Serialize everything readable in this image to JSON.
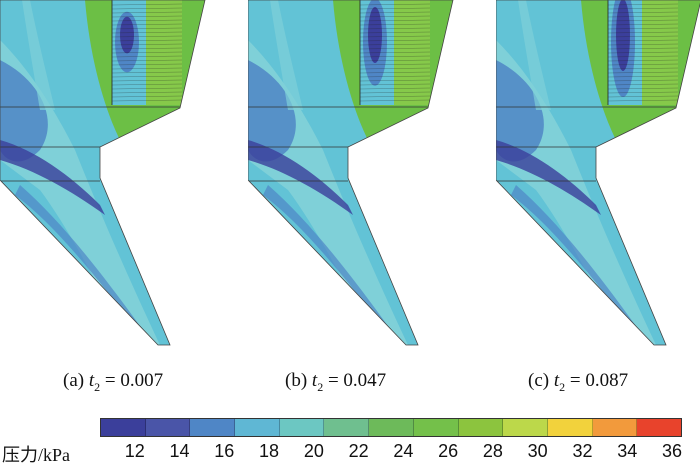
{
  "panels": [
    {
      "id": "a",
      "prefix": "(a) ",
      "var": "t",
      "sub": "2",
      "value": "= 0.007",
      "low_intensity": 0.45
    },
    {
      "id": "b",
      "prefix": "(b) ",
      "var": "t",
      "sub": "2",
      "value": "= 0.047",
      "low_intensity": 0.75
    },
    {
      "id": "c",
      "prefix": "(c) ",
      "var": "t",
      "sub": "2",
      "value": "= 0.087",
      "low_intensity": 1.0
    }
  ],
  "colorbar": {
    "label": "压力/kPa",
    "ticks": [
      "12",
      "14",
      "16",
      "18",
      "20",
      "22",
      "24",
      "26",
      "28",
      "30",
      "32",
      "34",
      "36"
    ],
    "colors": [
      "#3b3f9b",
      "#4a55a8",
      "#4f86c6",
      "#5fb7d4",
      "#6cc7c2",
      "#6fbf8f",
      "#6dba5a",
      "#74c04a",
      "#8cc43e",
      "#bcd84a",
      "#f2d23c",
      "#f29a3c",
      "#e8432c"
    ]
  },
  "colors": {
    "green": "#6cbf45",
    "green_light": "#86c94a",
    "cyan": "#62c3d6",
    "cyan_light": "#7fd0d8",
    "blue": "#4f86c6",
    "blue_dark": "#3b3f9b"
  }
}
